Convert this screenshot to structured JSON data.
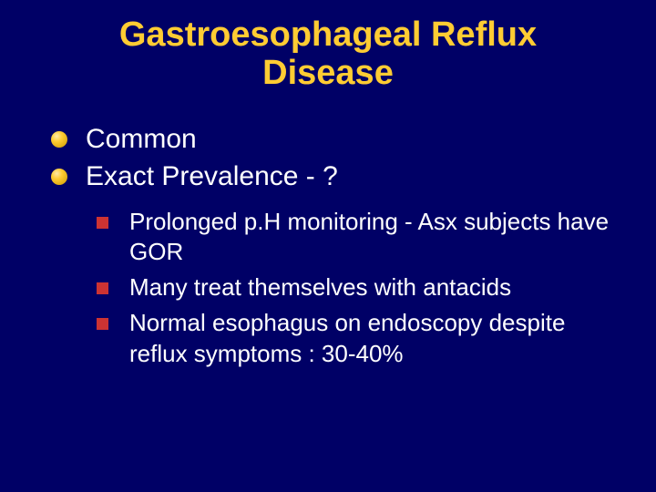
{
  "slide": {
    "title": "Gastroesophageal Reflux Disease",
    "background_color": "#000066",
    "title_color": "#ffcc33",
    "text_color": "#ffffff",
    "l1_bullet_color": "#ffcc33",
    "l2_bullet_color": "#cc3333",
    "title_fontsize": 38,
    "l1_fontsize": 30,
    "l2_fontsize": 26,
    "bullets_l1": [
      "Common",
      "Exact Prevalence - ?"
    ],
    "bullets_l2": [
      "Prolonged p.H monitoring - Asx subjects have GOR",
      "Many treat themselves with antacids",
      "Normal esophagus on endoscopy despite reflux symptoms : 30-40%"
    ]
  }
}
